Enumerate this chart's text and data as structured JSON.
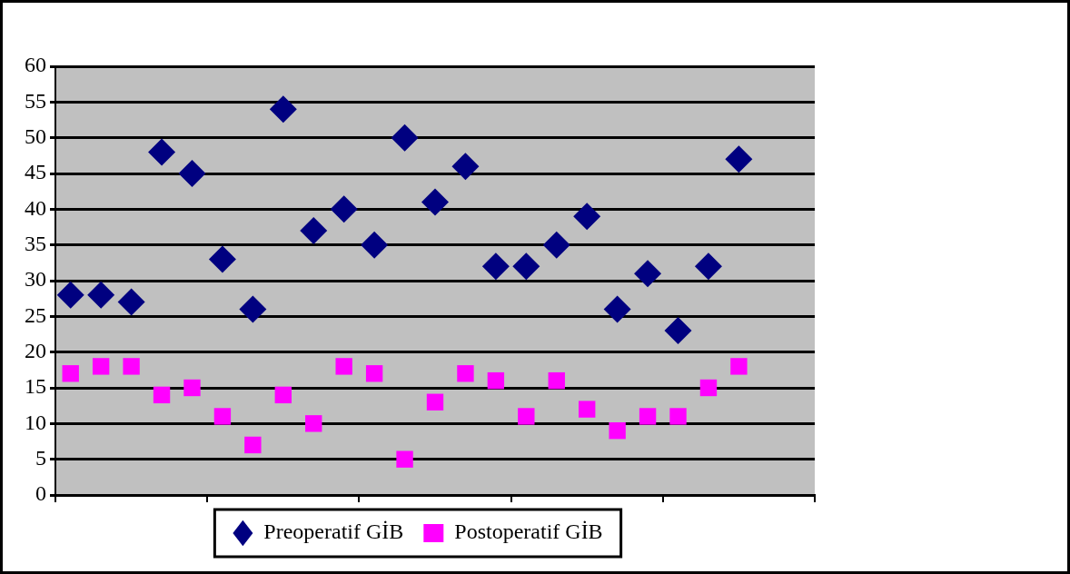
{
  "chart_data": {
    "type": "scatter",
    "categories": [
      null,
      null,
      null,
      null,
      null,
      null,
      null,
      null,
      null,
      null,
      null,
      null,
      null,
      null,
      null,
      null,
      null,
      null,
      null,
      null,
      null,
      null,
      null,
      null,
      null
    ],
    "series": [
      {
        "name": "Preoperatif GİB",
        "color": "#000080",
        "marker": "diamond",
        "values": [
          28,
          28,
          27,
          48,
          45,
          33,
          26,
          54,
          37,
          40,
          35,
          50,
          41,
          46,
          32,
          32,
          35,
          39,
          26,
          31,
          23,
          32,
          47,
          null,
          null
        ]
      },
      {
        "name": "Postoperatif GİB",
        "color": "#ff00ff",
        "marker": "square",
        "values": [
          17,
          18,
          18,
          14,
          15,
          11,
          7,
          14,
          10,
          18,
          17,
          5,
          13,
          17,
          16,
          11,
          16,
          12,
          9,
          11,
          11,
          15,
          18,
          null,
          null
        ]
      }
    ],
    "ylim": [
      0,
      60
    ],
    "yticks": [
      0,
      5,
      10,
      15,
      20,
      25,
      30,
      35,
      40,
      45,
      50,
      55,
      60
    ],
    "grid": "y",
    "legend": "bottom",
    "tick_labels": "y"
  }
}
